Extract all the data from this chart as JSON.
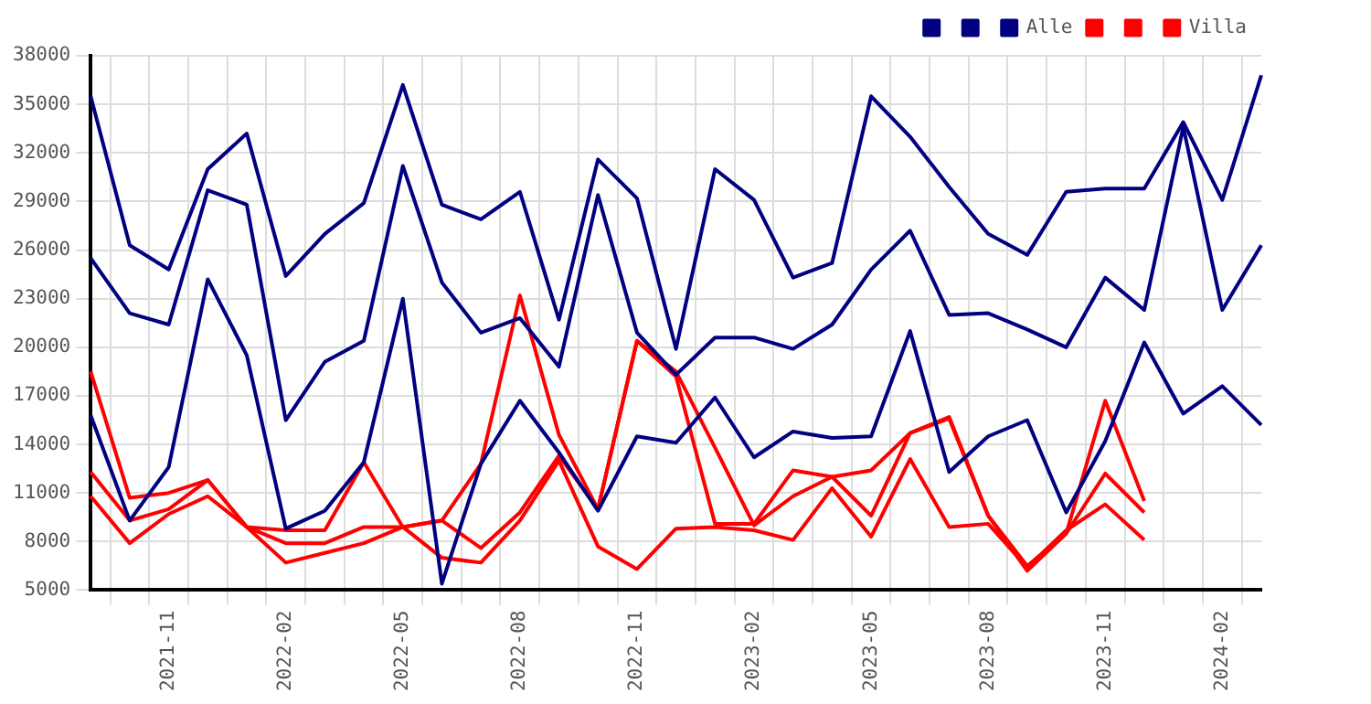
{
  "chart_data": {
    "type": "line",
    "categories": [
      null,
      null,
      "2021-11",
      null,
      null,
      "2022-02",
      null,
      null,
      "2022-05",
      null,
      null,
      "2022-08",
      null,
      null,
      "2022-11",
      null,
      null,
      "2023-02",
      null,
      null,
      "2023-05",
      null,
      null,
      "2023-08",
      null,
      null,
      "2023-11",
      null,
      null,
      "2024-02",
      null
    ],
    "series": [
      {
        "color": "#000080",
        "values": [
          35500,
          26300,
          24800,
          31000,
          33200,
          24400,
          27000,
          28900,
          36200,
          28800,
          27900,
          29600,
          21700,
          31600,
          29200,
          19900,
          31000,
          29100,
          24300,
          25200,
          35500,
          33000,
          29900,
          27000,
          25700,
          29600,
          29800,
          29800,
          33900,
          29100,
          36800
        ]
      },
      {
        "color": "#000080",
        "values": [
          25500,
          22100,
          21400,
          29700,
          28800,
          15500,
          19100,
          20400,
          31200,
          24000,
          20900,
          21800,
          18800,
          29400,
          20900,
          18300,
          20600,
          20600,
          19900,
          21400,
          24800,
          27200,
          22000,
          22100,
          21100,
          20000,
          24300,
          22300,
          33600,
          22300,
          26300
        ]
      },
      {
        "name": "Alle",
        "color": "#000080",
        "values": [
          15800,
          9300,
          12600,
          24200,
          19500,
          8800,
          9900,
          12900,
          23000,
          5400,
          12800,
          16700,
          13500,
          9900,
          14500,
          14100,
          16900,
          13200,
          14800,
          14400,
          14500,
          21000,
          12300,
          14500,
          15500,
          9800,
          14200,
          20300,
          15900,
          17600,
          15200
        ]
      },
      {
        "color": "#ff0000",
        "values": [
          12300,
          9300,
          10000,
          11800,
          8900,
          7900,
          7900,
          8900,
          8900,
          9300,
          12800,
          23200,
          14600,
          10000,
          20400,
          18200,
          9100,
          9100,
          12400,
          12000,
          12400,
          14700,
          15600,
          9600,
          6500,
          8500,
          16700,
          10500,
          null,
          null,
          null
        ]
      },
      {
        "color": "#ff0000",
        "values": [
          10800,
          7900,
          9700,
          10800,
          8900,
          6700,
          7300,
          7900,
          8900,
          9300,
          7600,
          9800,
          13300,
          10000,
          20400,
          18500,
          13800,
          9000,
          10800,
          12000,
          9600,
          14700,
          15700,
          9600,
          6200,
          8500,
          12200,
          9800,
          null,
          null,
          null
        ]
      },
      {
        "name": "Villa",
        "color": "#ff0000",
        "values": [
          18500,
          10700,
          11000,
          11800,
          8900,
          8700,
          8700,
          12900,
          8900,
          7000,
          6700,
          9300,
          13000,
          7700,
          6300,
          8800,
          8900,
          8700,
          8100,
          11300,
          8300,
          13100,
          8900,
          9100,
          6400,
          8700,
          10300,
          8100,
          null,
          null,
          null
        ]
      }
    ],
    "ylim": [
      5000,
      38000
    ],
    "yticks": [
      5000,
      8000,
      11000,
      14000,
      17000,
      20000,
      23000,
      26000,
      29000,
      32000,
      35000,
      38000
    ],
    "grid": true,
    "legend": "top right",
    "marker": "none"
  }
}
